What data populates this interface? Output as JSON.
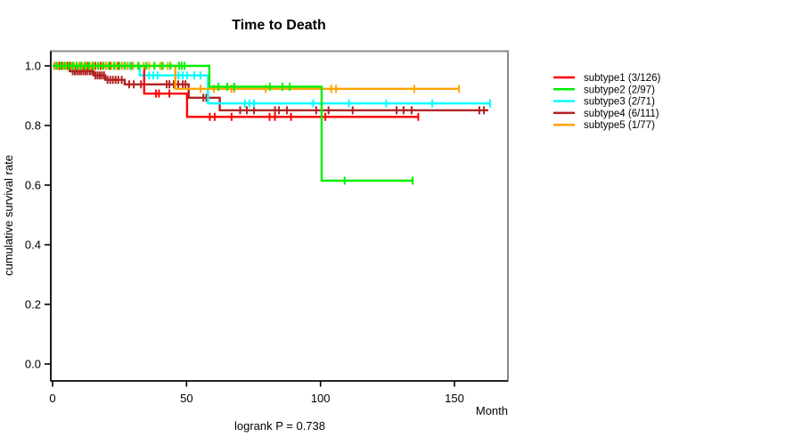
{
  "title": "Time to Death",
  "annotation": "logrank P = 0.738",
  "x_axis": {
    "label": "Month",
    "tick_labels": [
      "0",
      "50",
      "100",
      "150"
    ],
    "tick_values": [
      0,
      50,
      100,
      150
    ]
  },
  "y_axis": {
    "label": "cumulative survival rate",
    "tick_labels": [
      "0.0",
      "0.2",
      "0.4",
      "0.6",
      "0.8",
      "1.0"
    ],
    "tick_values": [
      0,
      0.2,
      0.4,
      0.6,
      0.8,
      1.0
    ]
  },
  "legend": {
    "position": "right",
    "items": [
      {
        "label": "subtype1 (3/126)",
        "color": "#FF0000"
      },
      {
        "label": "subtype2 (2/97)",
        "color": "#00EE00"
      },
      {
        "label": "subtype3 (2/71)",
        "color": "#00FFFF"
      },
      {
        "label": "subtype4 (6/111)",
        "color": "#B22222"
      },
      {
        "label": "subtype5 (1/77)",
        "color": "#FFA500"
      }
    ]
  },
  "chart_data": {
    "type": "line",
    "subtype": "kaplan-meier-step-curves",
    "title": "Time to Death",
    "xlabel": "Month",
    "ylabel": "cumulative survival rate",
    "annotation": "logrank P = 0.738",
    "xlim": [
      0,
      170
    ],
    "ylim": [
      0,
      1.05
    ],
    "x_ticks": [
      0,
      50,
      100,
      150
    ],
    "y_ticks": [
      0,
      0.2,
      0.4,
      0.6,
      0.8,
      1.0
    ],
    "grid": false,
    "legend_position": "right-outside",
    "series": [
      {
        "name": "subtype1 (3/126)",
        "color": "#FF0000",
        "events": 3,
        "n": 126,
        "steps": [
          [
            0,
            1
          ],
          [
            34.2,
            1
          ],
          [
            34.2,
            0.907
          ],
          [
            50.2,
            0.907
          ],
          [
            50.2,
            0.829
          ],
          [
            136.5,
            0.829
          ]
        ],
        "censors_xy": {
          "1": [
            0.8,
            1.6,
            2.4,
            3.2,
            4,
            4.8,
            5.6,
            6.4,
            7.2,
            8,
            9,
            10,
            11,
            12,
            13,
            14,
            15,
            16,
            17,
            18,
            19,
            20,
            21.5,
            23,
            24.5,
            26,
            28,
            30,
            32
          ],
          "0.907": [
            38.6,
            39.7,
            43.6
          ],
          "0.829": [
            58.7,
            60.5,
            66.8,
            81,
            83,
            89,
            101.8,
            136.5
          ]
        }
      },
      {
        "name": "subtype2 (2/97)",
        "color": "#00EE00",
        "events": 2,
        "n": 97,
        "steps": [
          [
            0,
            1
          ],
          [
            58.5,
            1
          ],
          [
            58.5,
            0.93
          ],
          [
            100.4,
            0.93
          ],
          [
            100.4,
            0.615
          ],
          [
            134.4,
            0.615
          ]
        ],
        "censors_xy": {
          "1": [
            1.5,
            3,
            4.5,
            6,
            7.5,
            9,
            10.5,
            12,
            13.5,
            15,
            17,
            19,
            21,
            23,
            25,
            27,
            29.3,
            32,
            35,
            38,
            41,
            44,
            47.2,
            48.2,
            49.2
          ],
          "0.93": [
            61.9,
            65.2,
            67.8,
            81.1,
            85.8,
            88.5
          ],
          "0.615": [
            109,
            134.4
          ]
        }
      },
      {
        "name": "subtype3 (2/71)",
        "color": "#00FFFF",
        "events": 2,
        "n": 71,
        "steps": [
          [
            0,
            1
          ],
          [
            32.6,
            1
          ],
          [
            32.6,
            0.968
          ],
          [
            58,
            0.968
          ],
          [
            58,
            0.874
          ],
          [
            163.3,
            0.874
          ]
        ],
        "censors_xy": {
          "1": [
            2.5,
            5,
            8,
            11,
            14,
            17,
            20,
            23,
            26,
            29
          ],
          "0.968": [
            36,
            37.6,
            39.2,
            47,
            48.6,
            50.2,
            52.9,
            55.2
          ],
          "0.874": [
            71.8,
            73.5,
            75.2,
            97.3,
            110.6,
            124.5,
            141.7,
            163.3
          ]
        }
      },
      {
        "name": "subtype4 (6/111)",
        "color": "#B22222",
        "events": 6,
        "n": 111,
        "steps": [
          [
            0,
            1
          ],
          [
            6.4,
            1
          ],
          [
            6.4,
            0.982
          ],
          [
            15.3,
            0.982
          ],
          [
            15.3,
            0.968
          ],
          [
            19.7,
            0.968
          ],
          [
            19.7,
            0.953
          ],
          [
            26.9,
            0.953
          ],
          [
            26.9,
            0.938
          ],
          [
            50.8,
            0.938
          ],
          [
            50.8,
            0.893
          ],
          [
            62.4,
            0.893
          ],
          [
            62.4,
            0.851
          ],
          [
            162.6,
            0.851
          ]
        ],
        "censors_xy": {
          "1": [
            1.2,
            2.4,
            3.6,
            4.8,
            6
          ],
          "0.982": [
            7.5,
            8.3,
            9.1,
            9.9,
            10.7,
            11.5,
            12.3,
            13.1,
            14,
            14.8
          ],
          "0.968": [
            16,
            16.8,
            17.6,
            18.4,
            19.2
          ],
          "0.953": [
            20.5,
            21.5,
            22.5,
            23.5,
            24.5,
            25.8
          ],
          "0.938": [
            28.6,
            30.3,
            33,
            42.6,
            43.6,
            45.2,
            46.9,
            48.6,
            49.6
          ],
          "0.893": [
            56.3,
            57.4
          ],
          "0.851": [
            70,
            72.5,
            75.2,
            83,
            84.5,
            87.5,
            98.4,
            103,
            112,
            128.4,
            131,
            134,
            159.3,
            161
          ]
        }
      },
      {
        "name": "subtype5 (1/77)",
        "color": "#FFA500",
        "events": 1,
        "n": 77,
        "steps": [
          [
            0,
            1
          ],
          [
            45.8,
            1
          ],
          [
            45.8,
            0.923
          ],
          [
            151.7,
            0.923
          ]
        ],
        "censors_xy": {
          "1": [
            1,
            2,
            3,
            4,
            5,
            6,
            7,
            8,
            9,
            10,
            11,
            12.5,
            14,
            15.5,
            17,
            18.5,
            20,
            22,
            24,
            26,
            28,
            30,
            32,
            34,
            36,
            38,
            40.2,
            41.2,
            43
          ],
          "0.923": [
            55.2,
            60.2,
            66.8,
            67.8,
            79.5,
            104,
            105.8,
            135,
            151.7
          ]
        }
      }
    ]
  }
}
